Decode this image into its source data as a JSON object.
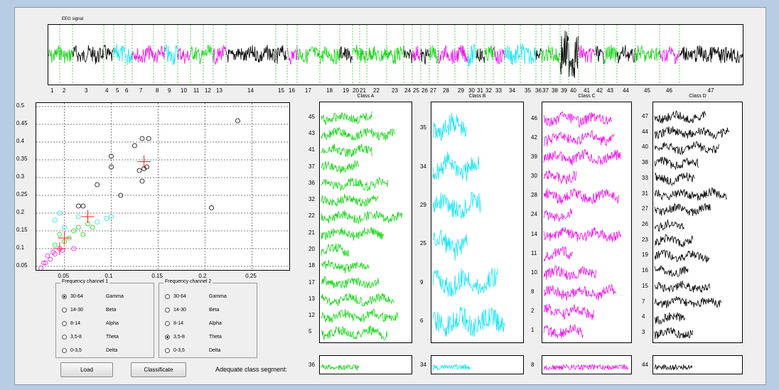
{
  "eeg": {
    "title": "EEG signal",
    "segment_labels": [
      "1",
      "2",
      "3",
      "4",
      "5",
      "6",
      "7",
      "8",
      "9",
      "10",
      "11",
      "12",
      "13",
      "14",
      "15",
      "16",
      "17",
      "18",
      "19",
      "20",
      "21",
      "22",
      "23",
      "24",
      "25",
      "26",
      "27",
      "28",
      "29",
      "30",
      "31",
      "32",
      "33",
      "34",
      "35",
      "36",
      "37",
      "38",
      "39",
      "40",
      "41",
      "42",
      "43",
      "44",
      "45",
      "46",
      "47"
    ],
    "segment_classes": [
      "A",
      "A",
      "D",
      "D",
      "B",
      "B",
      "C",
      "C",
      "B",
      "C",
      "A",
      "A",
      "C",
      "D",
      "D",
      "C",
      "A",
      "A",
      "D",
      "A",
      "A",
      "A",
      "A",
      "D",
      "C",
      "D",
      "A",
      "C",
      "C",
      "B",
      "D",
      "A",
      "C",
      "B",
      "B",
      "D",
      "A",
      "A",
      "D",
      "D",
      "C",
      "D",
      "A",
      "D",
      "A",
      "C",
      "D"
    ]
  },
  "colors": {
    "A": "#11d411",
    "B": "#18e4f4",
    "C": "#ee10ee",
    "D": "#000000",
    "centroid": "#ff2020"
  },
  "scatter": {
    "x_ticks": [
      "0.05",
      "0.1",
      "0.15",
      "0.2",
      "0.25"
    ],
    "y_ticks": [
      "0.05",
      "0.1",
      "0.15",
      "0.2",
      "0.25",
      "0.3",
      "0.35",
      "0.4",
      "0.45",
      "0.5"
    ]
  },
  "chart_data": {
    "type": "scatter",
    "xlim": [
      0.02,
      0.29
    ],
    "ylim": [
      0.04,
      0.51
    ],
    "series": [
      {
        "points": [
          [
            0.04,
            0.11
          ],
          [
            0.045,
            0.14
          ],
          [
            0.05,
            0.12
          ],
          [
            0.055,
            0.13
          ],
          [
            0.06,
            0.15
          ],
          [
            0.065,
            0.16
          ],
          [
            0.07,
            0.14
          ],
          [
            0.075,
            0.17
          ],
          [
            0.08,
            0.16
          ]
        ]
      },
      {
        "points": [
          [
            0.04,
            0.18
          ],
          [
            0.045,
            0.2
          ],
          [
            0.05,
            0.16
          ],
          [
            0.065,
            0.19
          ],
          [
            0.085,
            0.175
          ],
          [
            0.095,
            0.185
          ],
          [
            0.1,
            0.19
          ]
        ]
      },
      {
        "points": [
          [
            0.025,
            0.045
          ],
          [
            0.028,
            0.06
          ],
          [
            0.032,
            0.08
          ],
          [
            0.035,
            0.07
          ],
          [
            0.038,
            0.09
          ],
          [
            0.04,
            0.085
          ],
          [
            0.045,
            0.1
          ],
          [
            0.048,
            0.095
          ],
          [
            0.06,
            0.1
          ],
          [
            0.03,
            0.06
          ]
        ]
      },
      {
        "points": [
          [
            0.065,
            0.22
          ],
          [
            0.07,
            0.22
          ],
          [
            0.085,
            0.28
          ],
          [
            0.1,
            0.36
          ],
          [
            0.1,
            0.33
          ],
          [
            0.11,
            0.25
          ],
          [
            0.125,
            0.39
          ],
          [
            0.13,
            0.32
          ],
          [
            0.133,
            0.41
          ],
          [
            0.14,
            0.41
          ],
          [
            0.133,
            0.29
          ],
          [
            0.138,
            0.33
          ],
          [
            0.135,
            0.325
          ],
          [
            0.207,
            0.215
          ],
          [
            0.235,
            0.46
          ]
        ]
      }
    ],
    "centroids": [
      [
        0.05,
        0.13
      ],
      [
        0.075,
        0.19
      ],
      [
        0.045,
        0.1
      ],
      [
        0.135,
        0.345
      ]
    ]
  },
  "class_panels": [
    {
      "title": "Class A",
      "labels": [
        "45",
        "43",
        "41",
        "37",
        "36",
        "32",
        "22",
        "21",
        "20",
        "18",
        "17",
        "13",
        "12",
        "5"
      ]
    },
    {
      "title": "Class B",
      "labels": [
        "35",
        "34",
        "29",
        "25",
        "9",
        "6"
      ]
    },
    {
      "title": "Class C",
      "labels": [
        "46",
        "42",
        "39",
        "30",
        "28",
        "24",
        "14",
        "11",
        "10",
        "8",
        "2",
        "1"
      ]
    },
    {
      "title": "Class D",
      "labels": [
        "47",
        "44",
        "40",
        "38",
        "33",
        "31",
        "27",
        "26",
        "23",
        "19",
        "16",
        "15",
        "7",
        "4",
        "3"
      ]
    }
  ],
  "adequate": {
    "label": "Adequate class segment:",
    "values": [
      "36",
      "34",
      "8",
      "44"
    ]
  },
  "freq1": {
    "title": "Frequency channel 1",
    "options": [
      {
        "range": "30-64",
        "name": "Gamma",
        "checked": true
      },
      {
        "range": "14-30",
        "name": "Beta",
        "checked": false
      },
      {
        "range": "8-14",
        "name": "Alpha",
        "checked": false
      },
      {
        "range": "3,5-8",
        "name": "Theta",
        "checked": false
      },
      {
        "range": "0-3,5",
        "name": "Delta",
        "checked": false
      }
    ]
  },
  "freq2": {
    "title": "Frequency channel 2",
    "options": [
      {
        "range": "30-64",
        "name": "Gamma",
        "checked": false
      },
      {
        "range": "14-30",
        "name": "Beta",
        "checked": false
      },
      {
        "range": "8-14",
        "name": "Alpha",
        "checked": false
      },
      {
        "range": "3,5-8",
        "name": "Theta",
        "checked": true
      },
      {
        "range": "0-3,5",
        "name": "Delta",
        "checked": false
      }
    ]
  },
  "buttons": {
    "load": "Load",
    "classificate": "Classificate"
  }
}
